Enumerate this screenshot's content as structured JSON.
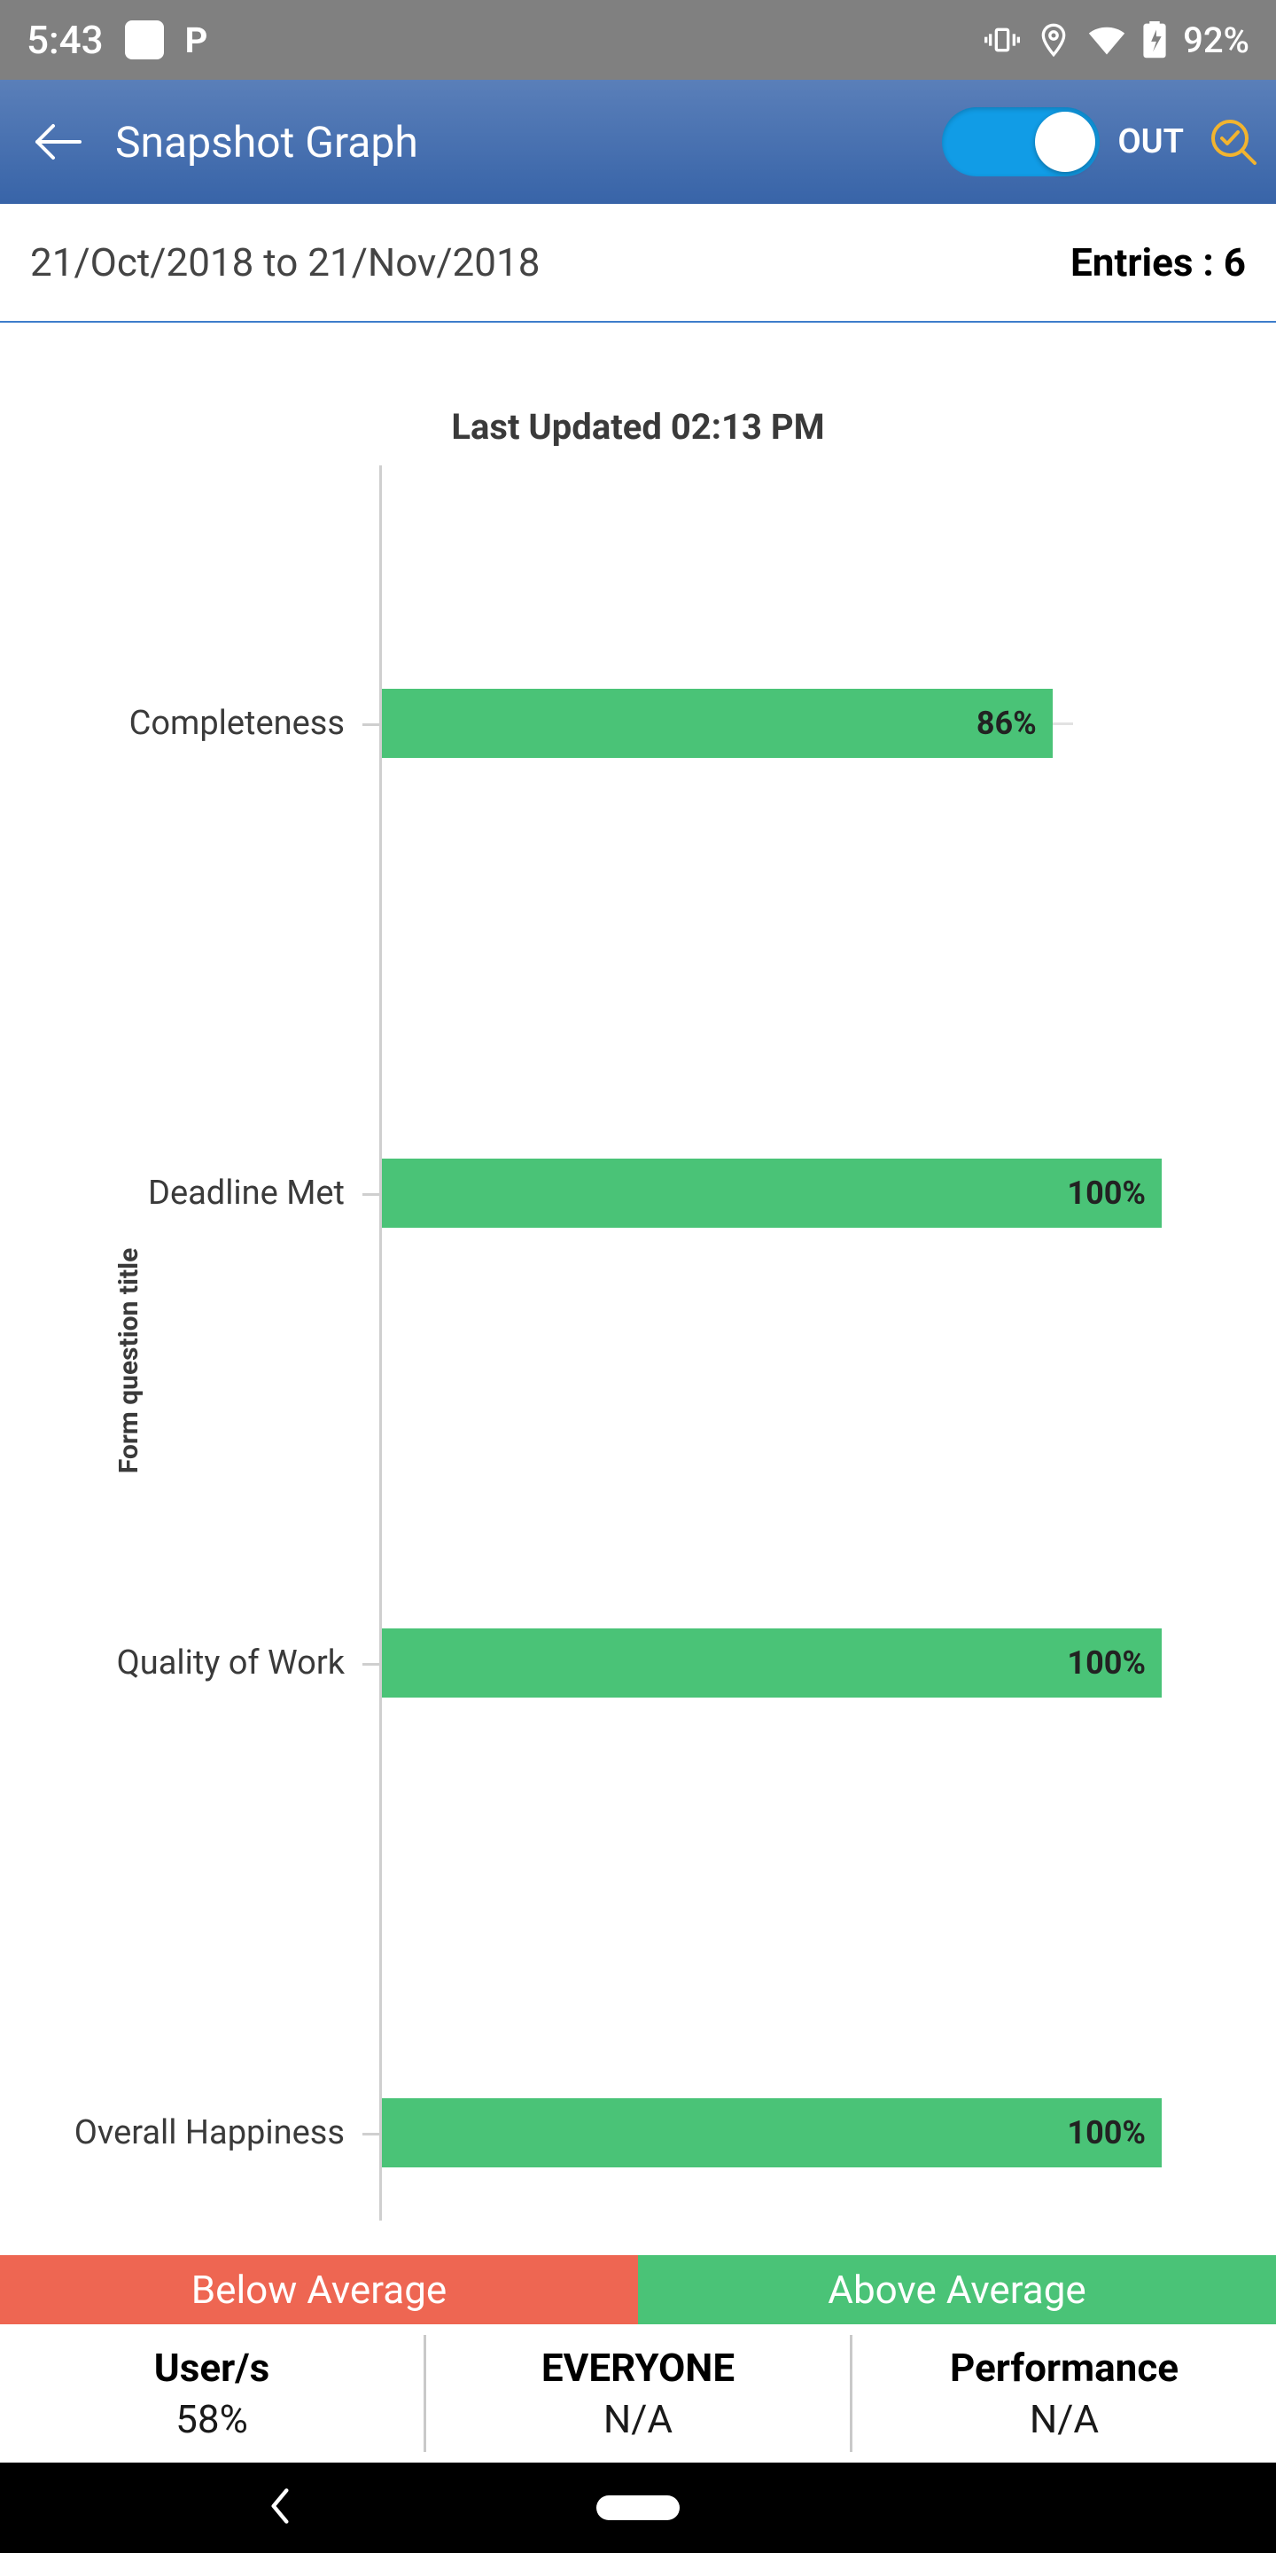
{
  "status": {
    "time": "5:43",
    "battery": "92%",
    "p_glyph": "P"
  },
  "header": {
    "title": "Snapshot Graph",
    "toggleLabel": "OUT"
  },
  "sub": {
    "dateRange": "21/Oct/2018 to 21/Nov/2018",
    "entriesLabel": "Entries :",
    "entriesCount": "6"
  },
  "chart": {
    "lastUpdated": "Last Updated 02:13 PM",
    "yAxisTitle": "Form question title",
    "type": "bar-horizontal",
    "categories": [
      "Completeness",
      "Deadline Met",
      "Quality of Work",
      "Overall Happiness"
    ],
    "values": [
      86,
      100,
      100,
      100
    ],
    "valueLabels": [
      "86%",
      "100%",
      "100%",
      "100%"
    ],
    "barColor": "#4ac377",
    "maxValue": 100,
    "gridColor": "#cfcfcf",
    "barPositions": [
      252,
      782,
      1312,
      1842
    ],
    "barHeightPx": 78,
    "fullWidthPx": 880,
    "tickLineWidthPx": 780
  },
  "legend": {
    "below": {
      "label": "Below Average",
      "bg": "#ee6652"
    },
    "above": {
      "label": "Above Average",
      "bg": "#4ac377"
    }
  },
  "stats": {
    "cols": [
      {
        "label": "User/s",
        "value": "58%"
      },
      {
        "label": "EVERYONE",
        "value": "N/A"
      },
      {
        "label": "Performance",
        "value": "N/A"
      }
    ]
  },
  "colors": {
    "headerGradTop": "#5a7fb9",
    "headerGradBot": "#3864a8",
    "toggleBg": "#119ce6",
    "subBorder": "#3d7dcb",
    "searchIcon": "#f2b42f"
  }
}
